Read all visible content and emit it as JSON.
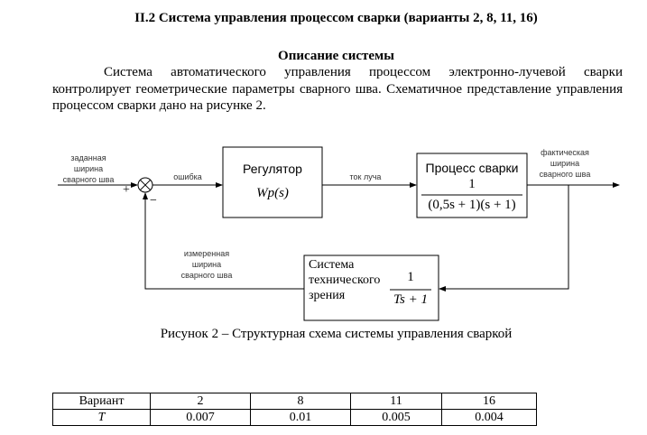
{
  "title": "II.2 Система управления процессом сварки (варианты 2, 8, 11, 16)",
  "heading": "Описание системы",
  "paragraph": "Система автоматического управления процессом электронно-лучевой сварки контролирует геометрические параметры сварного шва. Схематичное представление управления процессом сварки дано на рисунке 2.",
  "diagram": {
    "input_label": [
      "заданная",
      "ширина",
      "сварного шва"
    ],
    "plus": "+",
    "minus": "−",
    "error_label": "ошибка",
    "regulator": {
      "title": "Регулятор",
      "tf": "Wp(s)"
    },
    "beam_label": "ток луча",
    "process": {
      "title": "Процесс сварки",
      "num": "1",
      "den": "(0,5s + 1)(s + 1)"
    },
    "output_label": [
      "фактическая",
      "ширина",
      "сварного шва"
    ],
    "vision": {
      "title": [
        "Система",
        "технического",
        "зрения"
      ],
      "num": "1",
      "den": "Ts + 1"
    },
    "measured_label": [
      "измеренная",
      "ширина",
      "сварного шва"
    ]
  },
  "caption": "Рисунок 2 – Структурная схема системы управления сваркой",
  "table": {
    "header": [
      "Вариант",
      "2",
      "8",
      "11",
      "16"
    ],
    "row": [
      "T",
      "0.007",
      "0.01",
      "0.005",
      "0.004"
    ]
  }
}
